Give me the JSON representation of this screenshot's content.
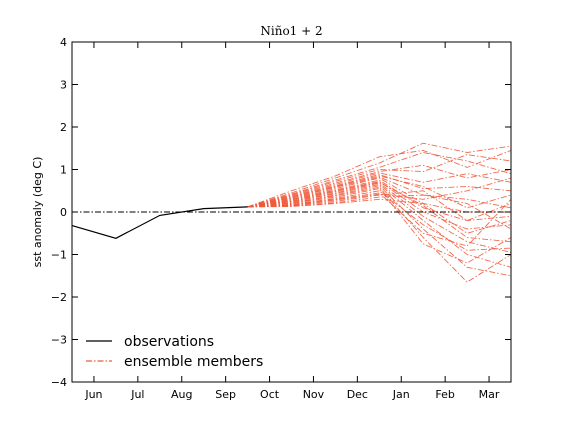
{
  "chart_data": {
    "type": "line",
    "title": "Niño1 + 2",
    "xlabel": "",
    "ylabel": "sst anomaly (deg C)",
    "xlim": [
      -0.5,
      9.5
    ],
    "ylim": [
      -4,
      4
    ],
    "categories": [
      "Jun",
      "Jul",
      "Aug",
      "Sep",
      "Oct",
      "Nov",
      "Dec",
      "Jan",
      "Feb",
      "Mar"
    ],
    "yticks": [
      -4,
      -3,
      -2,
      -1,
      0,
      1,
      2,
      3,
      4
    ],
    "ytick_labels": [
      "−4",
      "−3",
      "−2",
      "−1",
      "0",
      "1",
      "2",
      "3",
      "4"
    ],
    "zero_line": {
      "y": 0,
      "style": "dash-dot",
      "color": "#000000"
    },
    "grid": false,
    "legend": {
      "position": "lower-left",
      "entries": [
        {
          "label": "observations",
          "style": "solid",
          "color": "#000000"
        },
        {
          "label": "ensemble members",
          "style": "dash-dot",
          "color": "#f05a3c"
        }
      ]
    },
    "observations": {
      "name": "observations",
      "color": "#000000",
      "x": [
        -0.5,
        0.5,
        1.5,
        2.5,
        3.5
      ],
      "y": [
        -0.32,
        -0.62,
        -0.08,
        0.08,
        0.12
      ]
    },
    "ensemble": {
      "name": "ensemble members",
      "color": "#f05a3c",
      "start": {
        "x": 3.5,
        "y": 0.12
      },
      "x": [
        3.5,
        4.5,
        5.5,
        6.5,
        7.5,
        8.5,
        9.5
      ],
      "members": [
        [
          0.12,
          0.5,
          0.85,
          1.3,
          1.45,
          1.05,
          1.45
        ],
        [
          0.12,
          0.45,
          0.8,
          1.15,
          1.62,
          1.4,
          1.55
        ],
        [
          0.12,
          0.42,
          0.75,
          1.05,
          1.4,
          1.2,
          0.9
        ],
        [
          0.12,
          0.4,
          0.72,
          1.0,
          0.95,
          1.35,
          1.2
        ],
        [
          0.12,
          0.38,
          0.68,
          0.95,
          1.1,
          0.8,
          1.0
        ],
        [
          0.12,
          0.36,
          0.65,
          0.92,
          0.7,
          0.9,
          0.7
        ],
        [
          0.12,
          0.35,
          0.62,
          0.88,
          0.55,
          0.6,
          0.5
        ],
        [
          0.12,
          0.33,
          0.6,
          0.85,
          0.6,
          0.1,
          0.4
        ],
        [
          0.12,
          0.32,
          0.58,
          0.82,
          0.4,
          0.3,
          0.1
        ],
        [
          0.12,
          0.3,
          0.55,
          0.8,
          0.2,
          0.0,
          0.0
        ],
        [
          0.12,
          0.29,
          0.52,
          0.75,
          0.1,
          -0.2,
          -0.1
        ],
        [
          0.12,
          0.28,
          0.5,
          0.72,
          0.0,
          -0.4,
          -0.3
        ],
        [
          0.12,
          0.26,
          0.48,
          0.7,
          0.15,
          -0.6,
          -0.7
        ],
        [
          0.12,
          0.25,
          0.45,
          0.68,
          -0.1,
          -0.7,
          -0.95
        ],
        [
          0.12,
          0.24,
          0.43,
          0.65,
          -0.2,
          -1.0,
          -1.3
        ],
        [
          0.12,
          0.22,
          0.4,
          0.62,
          -0.4,
          -1.3,
          -1.5
        ],
        [
          0.12,
          0.21,
          0.38,
          0.58,
          -0.6,
          -1.65,
          -1.0
        ],
        [
          0.12,
          0.2,
          0.35,
          0.55,
          -0.75,
          -1.2,
          -0.6
        ],
        [
          0.12,
          0.18,
          0.32,
          0.5,
          -0.3,
          -0.9,
          -0.85
        ],
        [
          0.12,
          0.17,
          0.3,
          0.45,
          -0.5,
          -0.8,
          0.3
        ],
        [
          0.12,
          0.16,
          0.28,
          0.42,
          0.3,
          0.5,
          0.8
        ],
        [
          0.12,
          0.15,
          0.25,
          0.4,
          0.5,
          -0.2,
          0.2
        ],
        [
          0.12,
          0.14,
          0.22,
          0.35,
          0.4,
          0.2,
          -0.4
        ],
        [
          0.12,
          0.13,
          0.2,
          0.3,
          0.2,
          -0.5,
          -0.2
        ]
      ]
    }
  }
}
